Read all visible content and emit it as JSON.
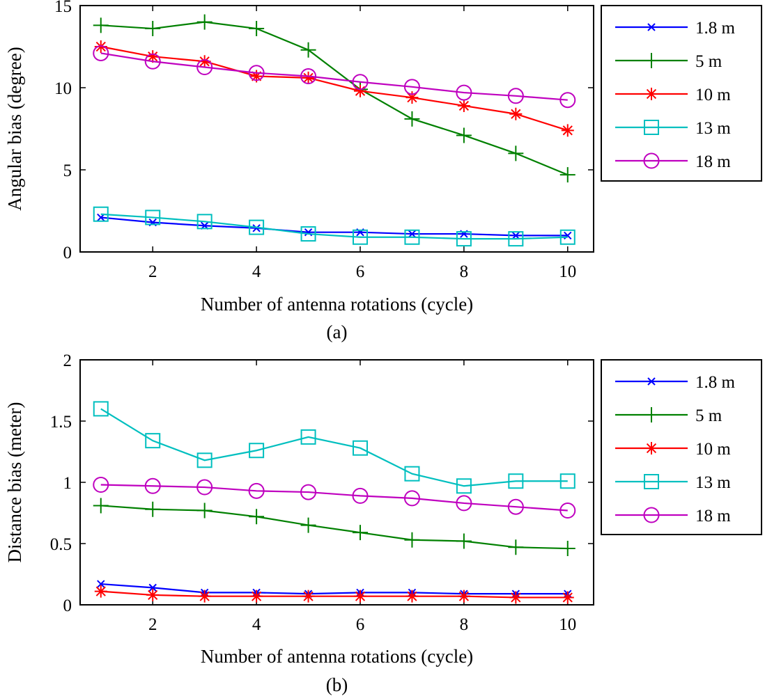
{
  "chart_data": [
    {
      "type": "line",
      "caption": "(a)",
      "xlabel": "Number of antenna rotations (cycle)",
      "ylabel": "Angular bias (degree)",
      "xlim": [
        0.6,
        10.5
      ],
      "ylim": [
        0,
        15
      ],
      "xticks": [
        2,
        4,
        6,
        8,
        10
      ],
      "yticks": [
        0,
        5,
        10,
        15
      ],
      "xticklabels": [
        "2",
        "4",
        "6",
        "8",
        "10"
      ],
      "yticklabels": [
        "0",
        "5",
        "10",
        "15"
      ],
      "grid": false,
      "legend_position": "outside-right-top",
      "x": [
        1,
        2,
        3,
        4,
        5,
        6,
        7,
        8,
        9,
        10
      ],
      "series": [
        {
          "name": "1.8 m",
          "color": "#0000ff",
          "marker": "x",
          "values": [
            2.1,
            1.8,
            1.6,
            1.45,
            1.2,
            1.2,
            1.1,
            1.1,
            1.0,
            1.0
          ]
        },
        {
          "name": "5 m",
          "color": "#008000",
          "marker": "+",
          "values": [
            13.8,
            13.6,
            14.0,
            13.6,
            12.3,
            9.9,
            8.1,
            7.1,
            6.0,
            4.7
          ]
        },
        {
          "name": "10 m",
          "color": "#ff0000",
          "marker": "*",
          "values": [
            12.5,
            11.9,
            11.6,
            10.7,
            10.6,
            9.8,
            9.4,
            8.9,
            8.4,
            7.4
          ]
        },
        {
          "name": "13 m",
          "color": "#00bfbf",
          "marker": "square",
          "values": [
            2.3,
            2.1,
            1.85,
            1.5,
            1.1,
            0.9,
            0.9,
            0.8,
            0.8,
            0.9
          ]
        },
        {
          "name": "18 m",
          "color": "#bf00bf",
          "marker": "circle",
          "values": [
            12.1,
            11.6,
            11.25,
            10.9,
            10.7,
            10.35,
            10.05,
            9.7,
            9.5,
            9.25
          ]
        }
      ]
    },
    {
      "type": "line",
      "caption": "(b)",
      "xlabel": "Number of antenna rotations (cycle)",
      "ylabel": "Distance bias (meter)",
      "xlim": [
        0.6,
        10.5
      ],
      "ylim": [
        0,
        2
      ],
      "xticks": [
        2,
        4,
        6,
        8,
        10
      ],
      "yticks": [
        0,
        0.5,
        1,
        1.5,
        2
      ],
      "xticklabels": [
        "2",
        "4",
        "6",
        "8",
        "10"
      ],
      "yticklabels": [
        "0",
        "0.5",
        "1",
        "1.5",
        "2"
      ],
      "grid": false,
      "legend_position": "outside-right-top",
      "x": [
        1,
        2,
        3,
        4,
        5,
        6,
        7,
        8,
        9,
        10
      ],
      "series": [
        {
          "name": "1.8 m",
          "color": "#0000ff",
          "marker": "x",
          "values": [
            0.17,
            0.14,
            0.1,
            0.1,
            0.09,
            0.1,
            0.1,
            0.09,
            0.09,
            0.09
          ]
        },
        {
          "name": "5 m",
          "color": "#008000",
          "marker": "+",
          "values": [
            0.81,
            0.78,
            0.77,
            0.72,
            0.65,
            0.59,
            0.53,
            0.52,
            0.47,
            0.46
          ]
        },
        {
          "name": "10 m",
          "color": "#ff0000",
          "marker": "*",
          "values": [
            0.11,
            0.08,
            0.07,
            0.07,
            0.07,
            0.07,
            0.07,
            0.07,
            0.06,
            0.06
          ]
        },
        {
          "name": "13 m",
          "color": "#00bfbf",
          "marker": "square",
          "values": [
            1.6,
            1.34,
            1.18,
            1.26,
            1.37,
            1.28,
            1.07,
            0.97,
            1.01,
            1.01
          ]
        },
        {
          "name": "18 m",
          "color": "#bf00bf",
          "marker": "circle",
          "values": [
            0.98,
            0.97,
            0.96,
            0.93,
            0.92,
            0.89,
            0.87,
            0.83,
            0.8,
            0.77
          ]
        }
      ]
    }
  ]
}
